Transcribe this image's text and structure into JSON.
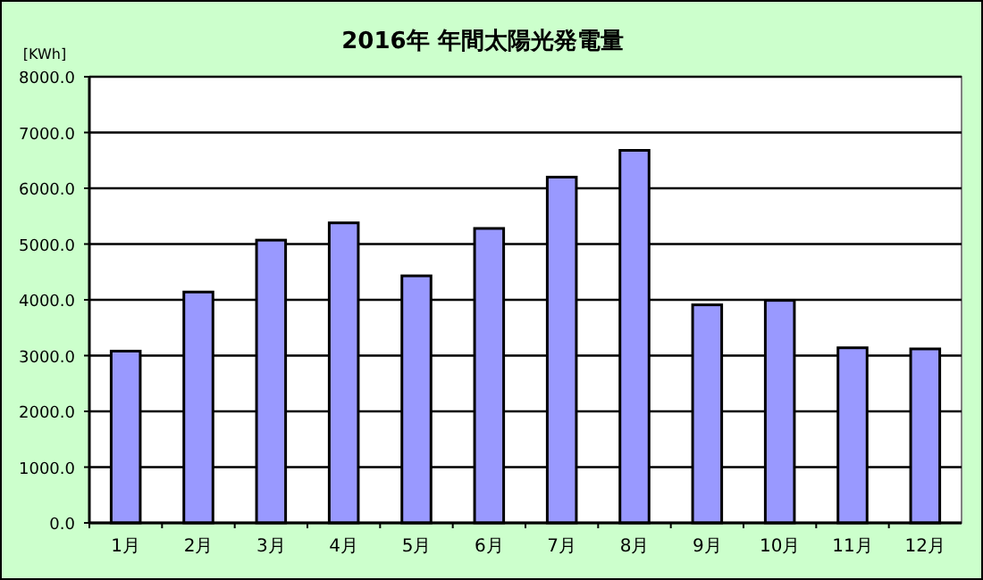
{
  "chart_data": {
    "type": "bar",
    "title": "2016年  年間太陽光発電量",
    "ylabel": "[KWh]",
    "categories": [
      "1月",
      "2月",
      "3月",
      "4月",
      "5月",
      "6月",
      "7月",
      "8月",
      "9月",
      "10月",
      "11月",
      "12月"
    ],
    "values": [
      3080,
      4140,
      5070,
      5380,
      4430,
      5280,
      6200,
      6680,
      3910,
      3990,
      3140,
      3120
    ],
    "color": "#9999ff",
    "ylim": [
      0,
      8000
    ],
    "yticks": [
      {
        "value": 0,
        "label": "0.0"
      },
      {
        "value": 1000,
        "label": "1000.0"
      },
      {
        "value": 2000,
        "label": "2000.0"
      },
      {
        "value": 3000,
        "label": "3000.0"
      },
      {
        "value": 4000,
        "label": "4000.0"
      },
      {
        "value": 5000,
        "label": "5000.0"
      },
      {
        "value": 6000,
        "label": "6000.0"
      },
      {
        "value": 7000,
        "label": "7000.0"
      },
      {
        "value": 8000,
        "label": "8000.0"
      }
    ],
    "grid": "y"
  }
}
